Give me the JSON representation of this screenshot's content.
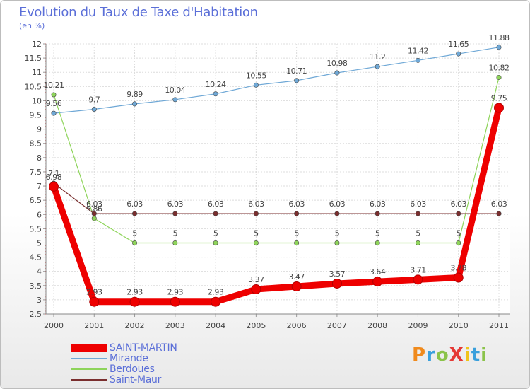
{
  "title": "Evolution du Taux de Taxe d'Habitation",
  "subtitle": "(en %)",
  "logo_text": "ProXiti",
  "chart_data": {
    "type": "line",
    "x": [
      "2000",
      "2001",
      "2002",
      "2003",
      "2004",
      "2005",
      "2006",
      "2007",
      "2008",
      "2009",
      "2010",
      "2011"
    ],
    "ylim": [
      2.5,
      12
    ],
    "yticks": [
      "2.5",
      "3",
      "3.5",
      "4",
      "4.5",
      "5",
      "5.5",
      "6",
      "6.5",
      "7",
      "7.5",
      "8",
      "8.5",
      "9",
      "9.5",
      "10",
      "10.5",
      "11",
      "11.5",
      "12"
    ],
    "grid": true,
    "legend_position": "bottom-left",
    "series": [
      {
        "name": "SAINT-MARTIN",
        "color": "#ee0000",
        "values": [
          6.98,
          2.93,
          2.93,
          2.93,
          2.93,
          3.37,
          3.47,
          3.57,
          3.64,
          3.71,
          3.78,
          9.75
        ],
        "labels": [
          "6.98",
          "2.93",
          "2.93",
          "2.93",
          "2.93",
          "3.37",
          "3.47",
          "3.57",
          "3.64",
          "3.71",
          "3.78",
          "9.75"
        ]
      },
      {
        "name": "Mirande",
        "color": "#6fa8d6",
        "values": [
          9.56,
          9.7,
          9.89,
          10.04,
          10.24,
          10.55,
          10.71,
          10.98,
          11.2,
          11.42,
          11.65,
          11.88
        ],
        "labels": [
          "9.56",
          "9.7",
          "9.89",
          "10.04",
          "10.24",
          "10.55",
          "10.71",
          "10.98",
          "11.2",
          "11.42",
          "11.65",
          "11.88"
        ]
      },
      {
        "name": "Berdoues",
        "color": "#8ed45a",
        "values": [
          10.21,
          5.86,
          5,
          5,
          5,
          5,
          5,
          5,
          5,
          5,
          5,
          10.82
        ],
        "labels": [
          "10.21",
          "5.86",
          "5",
          "5",
          "5",
          "5",
          "5",
          "5",
          "5",
          "5",
          "5",
          "10.82"
        ]
      },
      {
        "name": "Saint-Maur",
        "color": "#7a2e2e",
        "values": [
          7.1,
          6.03,
          6.03,
          6.03,
          6.03,
          6.03,
          6.03,
          6.03,
          6.03,
          6.03,
          6.03,
          6.03
        ],
        "labels": [
          "7.1",
          "6.03",
          "6.03",
          "6.03",
          "6.03",
          "6.03",
          "6.03",
          "6.03",
          "6.03",
          "6.03",
          "6.03",
          "6.03"
        ]
      }
    ]
  }
}
